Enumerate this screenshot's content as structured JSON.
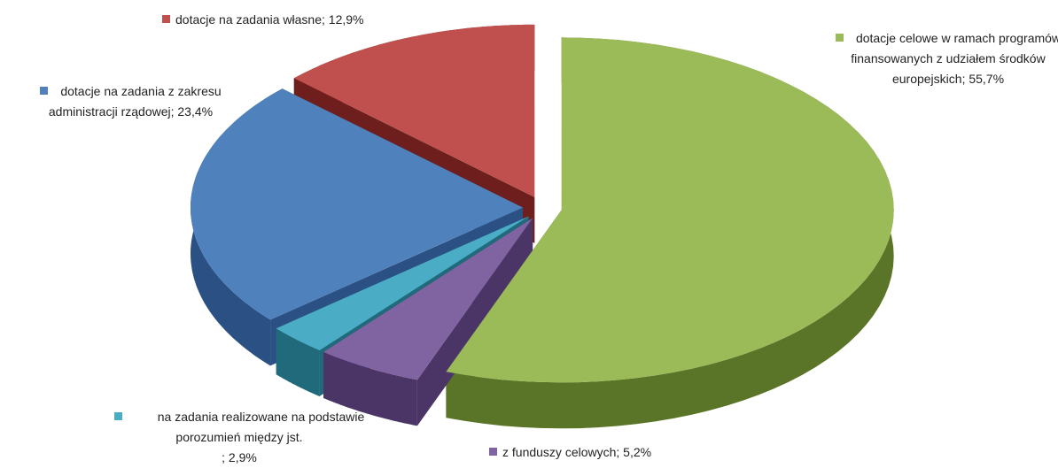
{
  "chart_data": {
    "type": "pie",
    "categories": [
      "dotacje celowe w ramach programów finansowanych z udziałem środków europejskich",
      "z funduszy celowych",
      "na zadania realizowane na podstawie porozumień między jst.",
      "dotacje na zadania z zakresu administracji rządowej",
      "dotacje na zadania własne"
    ],
    "values": [
      55.7,
      5.2,
      2.9,
      23.4,
      12.9
    ],
    "value_labels": [
      "; 55,7%",
      "; 5,2%",
      "; 2,9%",
      "; 23,4%",
      "; 12,9%"
    ],
    "colors": [
      "#9bbb59",
      "#8064a2",
      "#4bacc6",
      "#4f81bd",
      "#c0504d"
    ],
    "side_colors": [
      "#5b7528",
      "#4a3566",
      "#216a7c",
      "#2b5184",
      "#6e1f1d"
    ]
  }
}
